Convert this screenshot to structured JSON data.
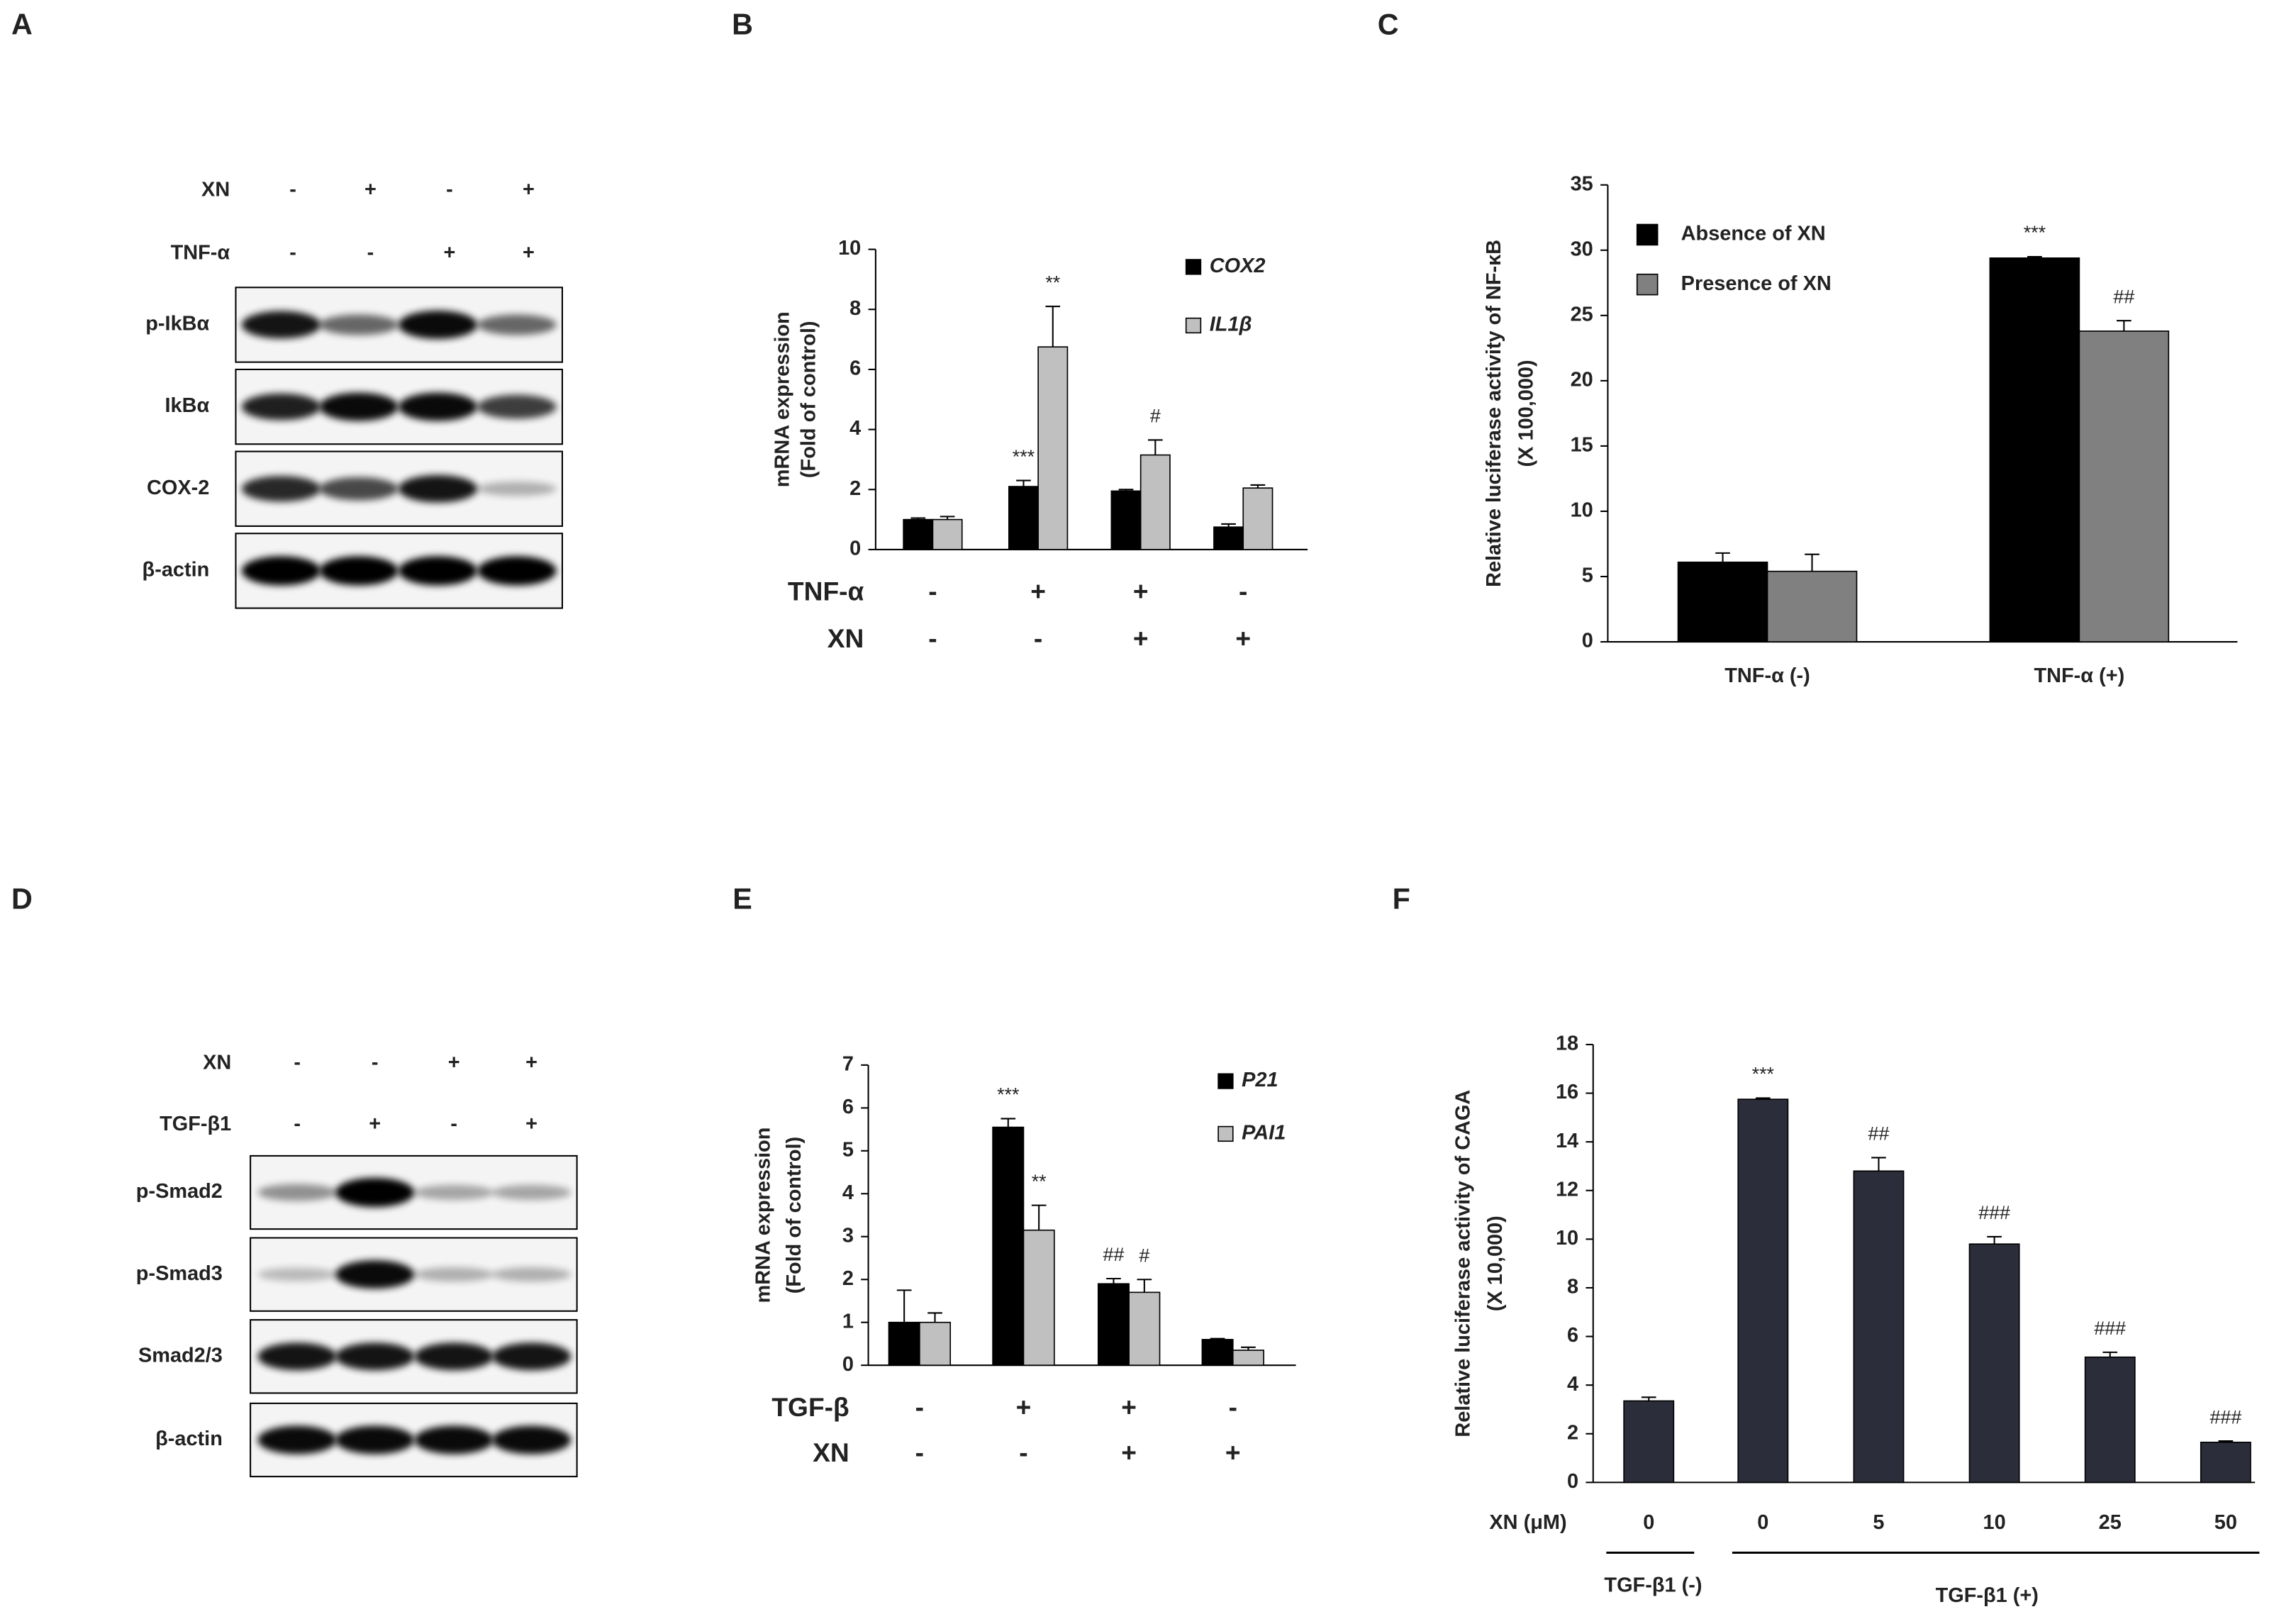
{
  "blots": [
    {
      "panel": "A",
      "conditions": [
        {
          "label": "XN",
          "values": [
            "-",
            "+",
            "-",
            "+"
          ]
        },
        {
          "label": "TNF-α",
          "values": [
            "-",
            "-",
            "+",
            "+"
          ]
        }
      ],
      "bands": [
        "p-IkBα",
        "IkBα",
        "COX-2",
        "β-actin"
      ]
    },
    {
      "panel": "D",
      "conditions": [
        {
          "label": "XN",
          "values": [
            "-",
            "-",
            "+",
            "+"
          ]
        },
        {
          "label": "TGF-β1",
          "values": [
            "-",
            "+",
            "-",
            "+"
          ]
        }
      ],
      "bands": [
        "p-Smad2",
        "p-Smad3",
        "Smad2/3",
        "β-actin"
      ]
    }
  ],
  "chart_data": [
    {
      "type": "bar",
      "panel": "B",
      "ylabel": [
        "mRNA expression",
        "(Fold of control)"
      ],
      "ylim": [
        0,
        10
      ],
      "yticks": [
        0,
        2,
        4,
        6,
        8,
        10
      ],
      "legend_font_style": "italic",
      "conditions": [
        {
          "label": "TNF-α",
          "values": [
            "-",
            "+",
            "+",
            "-"
          ]
        },
        {
          "label": "XN",
          "values": [
            "-",
            "-",
            "+",
            "+"
          ]
        }
      ],
      "series": [
        {
          "name": "COX2",
          "color": "#000000",
          "values": [
            1.0,
            2.1,
            1.95,
            0.75
          ],
          "errors": [
            0.05,
            0.2,
            0.05,
            0.1
          ],
          "annotations": [
            null,
            "***",
            null,
            null
          ]
        },
        {
          "name": "IL1β",
          "color": "#c0c0c0",
          "values": [
            1.0,
            6.75,
            3.15,
            2.05
          ],
          "errors": [
            0.1,
            1.35,
            0.5,
            0.1
          ],
          "annotations": [
            null,
            "**",
            "#",
            null
          ]
        }
      ]
    },
    {
      "type": "bar",
      "panel": "C",
      "ylabel": [
        "Relative luciferase activity of NF-κB",
        "(X 100,000)"
      ],
      "ylim": [
        0,
        35
      ],
      "yticks": [
        0,
        5,
        10,
        15,
        20,
        25,
        30,
        35
      ],
      "categories": [
        "TNF-α (-)",
        "TNF-α (+)"
      ],
      "series": [
        {
          "name": "Absence of XN",
          "color": "#000000",
          "values": [
            6.1,
            29.4
          ],
          "errors": [
            0.7,
            0.1
          ],
          "annotations": [
            null,
            "***"
          ]
        },
        {
          "name": "Presence of XN",
          "color": "#808080",
          "values": [
            5.4,
            23.8
          ],
          "errors": [
            1.3,
            0.8
          ],
          "annotations": [
            null,
            "##"
          ]
        }
      ]
    },
    {
      "type": "bar",
      "panel": "E",
      "ylabel": [
        "mRNA expression",
        "(Fold of control)"
      ],
      "ylim": [
        0,
        7
      ],
      "yticks": [
        0,
        1,
        2,
        3,
        4,
        5,
        6,
        7
      ],
      "legend_font_style": "italic",
      "conditions": [
        {
          "label": "TGF-β",
          "values": [
            "-",
            "+",
            "+",
            "-"
          ]
        },
        {
          "label": "XN",
          "values": [
            "-",
            "-",
            "+",
            "+"
          ]
        }
      ],
      "series": [
        {
          "name": "P21",
          "color": "#000000",
          "values": [
            1.0,
            5.55,
            1.9,
            0.6
          ],
          "errors": [
            0.75,
            0.2,
            0.12,
            0.02
          ],
          "annotations": [
            null,
            "***",
            "##",
            null
          ]
        },
        {
          "name": "PAI1",
          "color": "#c0c0c0",
          "values": [
            1.0,
            3.15,
            1.7,
            0.35
          ],
          "errors": [
            0.22,
            0.58,
            0.3,
            0.07
          ],
          "annotations": [
            null,
            "**",
            "#",
            null
          ]
        }
      ]
    },
    {
      "type": "bar",
      "panel": "F",
      "ylabel": [
        "Relative luciferase activity of CAGA",
        "(X 10,000)"
      ],
      "ylim": [
        0,
        18
      ],
      "yticks": [
        0,
        2,
        4,
        6,
        8,
        10,
        12,
        14,
        16,
        18
      ],
      "xlabel": "XN (μM)",
      "categories": [
        "0",
        "0",
        "5",
        "10",
        "25",
        "50"
      ],
      "groups": [
        "TGF-β1 (-)",
        "TGF-β1 (+)"
      ],
      "series": [
        {
          "color": "#2b2d3a",
          "values": [
            3.35,
            15.75,
            12.8,
            9.8,
            5.15,
            1.65
          ],
          "errors": [
            0.15,
            0.05,
            0.55,
            0.3,
            0.2,
            0.05
          ],
          "annotations": [
            null,
            "***",
            "##",
            "###",
            "###",
            "###"
          ]
        }
      ]
    }
  ]
}
